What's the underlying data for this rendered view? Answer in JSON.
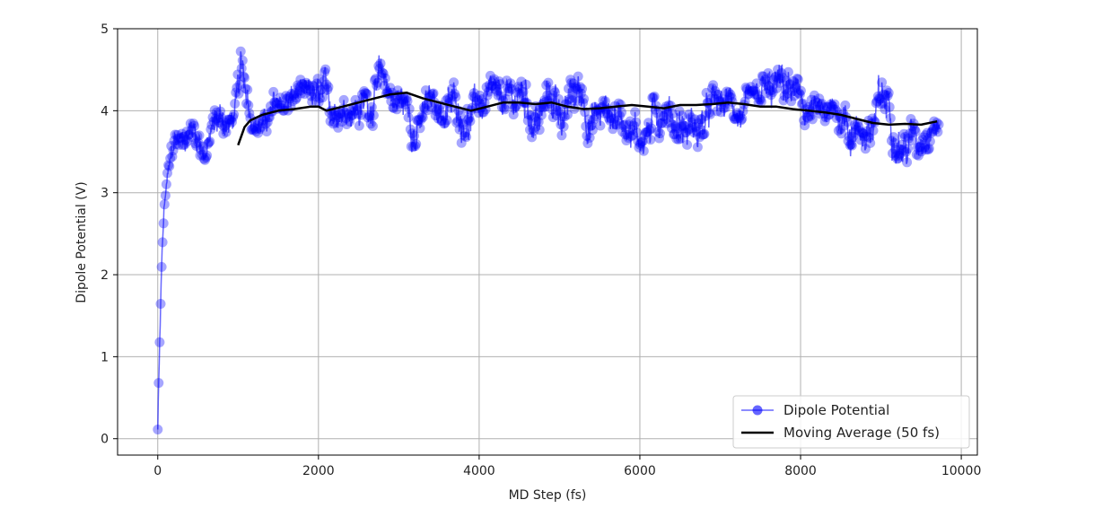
{
  "chart_data": {
    "type": "line",
    "title": "",
    "xlabel": "MD Step (fs)",
    "ylabel": "Dipole Potential (V)",
    "xlim": [
      -500,
      10200
    ],
    "ylim": [
      -0.2,
      5.0
    ],
    "xticks": [
      0,
      2000,
      4000,
      6000,
      8000,
      10000
    ],
    "yticks": [
      0,
      1,
      2,
      3,
      4,
      5
    ],
    "grid": true,
    "legend": "bottom-right",
    "colors": {
      "dipole": "#0000ff",
      "moving_average": "#000000"
    },
    "series": [
      {
        "name": "Dipole Potential",
        "style": "line-with-circle-markers",
        "x_start": 0,
        "x_end": 9730,
        "envelope": {
          "x": [
            0,
            5,
            20,
            40,
            60,
            80,
            100,
            150,
            200,
            300,
            400,
            500,
            600,
            700,
            800,
            900,
            1000,
            1050,
            1200,
            1500,
            1800,
            2000,
            2100,
            2300,
            2500,
            2700,
            3000,
            3200,
            3500,
            3800,
            4000,
            4300,
            4600,
            5000,
            5300,
            5600,
            5800,
            6000,
            6300,
            6600,
            7000,
            7300,
            7600,
            7800,
            8000,
            8300,
            8600,
            8800,
            9000,
            9300,
            9500,
            9730
          ],
          "low": [
            0.03,
            0.2,
            0.6,
            1.5,
            2.2,
            2.6,
            2.8,
            3.0,
            3.1,
            3.3,
            3.4,
            3.4,
            3.3,
            3.5,
            3.6,
            3.6,
            3.7,
            3.8,
            3.7,
            3.7,
            3.7,
            3.5,
            3.6,
            3.8,
            3.8,
            3.8,
            3.7,
            3.4,
            3.6,
            3.6,
            3.7,
            3.6,
            3.5,
            3.6,
            3.5,
            3.6,
            3.6,
            3.4,
            3.7,
            3.5,
            3.6,
            3.7,
            3.6,
            3.7,
            3.6,
            3.5,
            3.4,
            3.5,
            3.4,
            3.3,
            3.4,
            3.7
          ],
          "high": [
            0.2,
            0.5,
            1.2,
            2.0,
            2.5,
            2.9,
            3.1,
            3.5,
            3.8,
            3.8,
            4.2,
            4.2,
            4.0,
            4.3,
            4.4,
            4.2,
            4.6,
            4.8,
            4.1,
            4.3,
            4.4,
            4.4,
            4.6,
            4.5,
            4.6,
            4.75,
            4.5,
            4.3,
            4.4,
            4.4,
            4.5,
            4.4,
            4.5,
            4.5,
            4.5,
            4.4,
            4.5,
            4.2,
            4.6,
            4.5,
            4.3,
            4.3,
            4.5,
            4.6,
            4.4,
            4.1,
            4.3,
            4.35,
            4.5,
            4.2,
            4.3,
            4.3
          ]
        }
      },
      {
        "name": "Moving Average (50 fs)",
        "style": "line",
        "x": [
          1000,
          1080,
          1150,
          1300,
          1500,
          1700,
          1900,
          2000,
          2100,
          2300,
          2500,
          2700,
          2900,
          3100,
          3300,
          3500,
          3700,
          3900,
          4100,
          4300,
          4500,
          4700,
          4900,
          5100,
          5300,
          5500,
          5700,
          5900,
          6100,
          6300,
          6500,
          6700,
          6900,
          7100,
          7300,
          7500,
          7700,
          7900,
          8100,
          8300,
          8500,
          8700,
          8900,
          9100,
          9300,
          9500,
          9700
        ],
        "values": [
          3.58,
          3.8,
          3.88,
          3.95,
          4.0,
          4.02,
          4.05,
          4.05,
          4.0,
          4.05,
          4.1,
          4.15,
          4.2,
          4.22,
          4.15,
          4.1,
          4.05,
          4.0,
          4.05,
          4.1,
          4.1,
          4.08,
          4.1,
          4.05,
          4.02,
          4.03,
          4.05,
          4.07,
          4.05,
          4.03,
          4.07,
          4.07,
          4.08,
          4.1,
          4.08,
          4.05,
          4.05,
          4.02,
          4.0,
          3.98,
          3.95,
          3.9,
          3.85,
          3.83,
          3.84,
          3.83,
          3.87
        ]
      }
    ]
  }
}
